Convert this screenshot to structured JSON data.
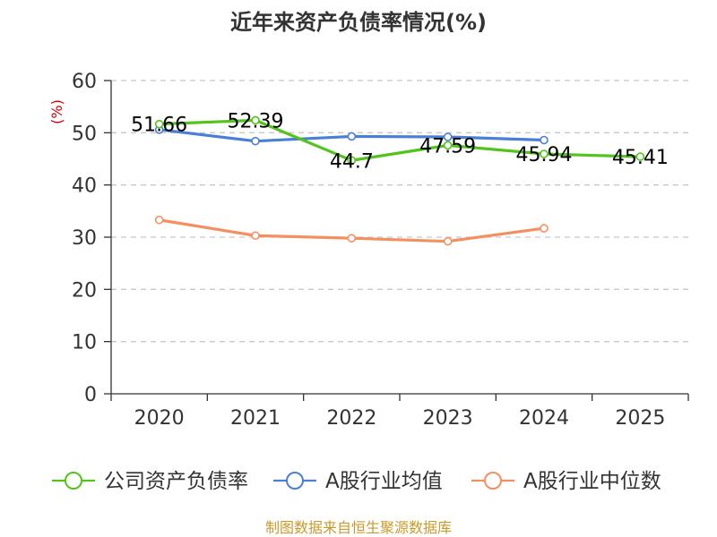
{
  "chart_data": {
    "type": "line",
    "title": "近年来资产负债率情况(%)",
    "ylabel": "(%)",
    "xlabel": "",
    "categories": [
      "2020",
      "2021",
      "2022",
      "2023",
      "2024",
      "2025"
    ],
    "ylim": [
      0,
      60
    ],
    "yticks": [
      0,
      10,
      20,
      30,
      40,
      50,
      60
    ],
    "grid": "horizontal-dashed",
    "legend_position": "bottom",
    "series": [
      {
        "name": "公司资产负债率",
        "color": "#52c41a",
        "values": [
          51.66,
          52.39,
          44.7,
          47.59,
          45.94,
          45.41
        ],
        "labels": [
          "51.66",
          "52.39",
          "44.7",
          "47.59",
          "45.94",
          "45.41"
        ]
      },
      {
        "name": "A股行业均值",
        "color": "#4a7fd6",
        "values": [
          50.6,
          48.4,
          49.3,
          49.2,
          48.6,
          null
        ]
      },
      {
        "name": "A股行业中位数",
        "color": "#f39060",
        "values": [
          33.3,
          30.3,
          29.8,
          29.2,
          31.7,
          null
        ]
      }
    ]
  },
  "source": "制图数据来自恒生聚源数据库"
}
